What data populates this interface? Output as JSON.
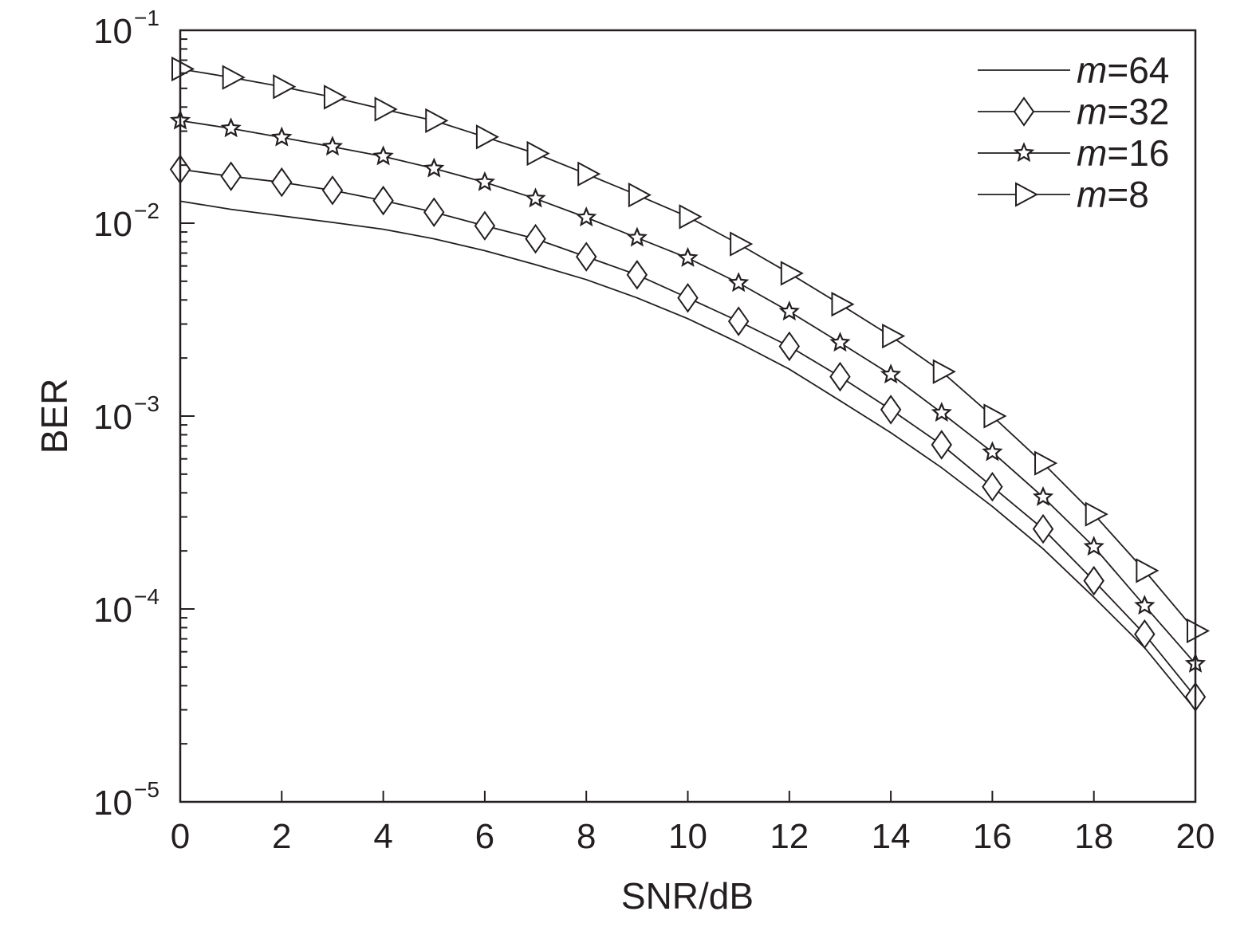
{
  "chart_data": {
    "type": "line",
    "xlabel": "SNR/dB",
    "ylabel": "BER",
    "xlim": [
      0,
      20
    ],
    "ylim": [
      1e-05,
      0.1
    ],
    "yscale": "log",
    "grid": false,
    "legend_position": "top-right",
    "x_ticks": [
      "0",
      "2",
      "4",
      "6",
      "8",
      "10",
      "12",
      "14",
      "16",
      "18",
      "20"
    ],
    "y_ticks": [
      {
        "base": "10",
        "exp": "−1",
        "value": 0.1
      },
      {
        "base": "10",
        "exp": "−2",
        "value": 0.01
      },
      {
        "base": "10",
        "exp": "−3",
        "value": 0.001
      },
      {
        "base": "10",
        "exp": "−4",
        "value": 0.0001
      },
      {
        "base": "10",
        "exp": "−5",
        "value": 1e-05
      }
    ],
    "x": [
      0,
      1,
      2,
      3,
      4,
      5,
      6,
      7,
      8,
      9,
      10,
      11,
      12,
      13,
      14,
      15,
      16,
      17,
      18,
      19,
      20
    ],
    "series": [
      {
        "name_var": "m",
        "name_val": "=64",
        "marker": "none",
        "values": [
          0.013,
          0.0118,
          0.0109,
          0.0101,
          0.0093,
          0.0083,
          0.0072,
          0.0061,
          0.0051,
          0.0041,
          0.0032,
          0.0024,
          0.00175,
          0.0012,
          0.00082,
          0.00054,
          0.00034,
          0.000205,
          0.000115,
          6.3e-05,
          3e-05
        ]
      },
      {
        "name_var": "m",
        "name_val": "=32",
        "marker": "diamond",
        "values": [
          0.019,
          0.0175,
          0.0163,
          0.0148,
          0.0131,
          0.0114,
          0.0097,
          0.0083,
          0.0067,
          0.0054,
          0.0041,
          0.0031,
          0.0023,
          0.0016,
          0.00108,
          0.00071,
          0.00043,
          0.00026,
          0.00014,
          7.4e-05,
          3.5e-05
        ]
      },
      {
        "name_var": "m",
        "name_val": "=16",
        "marker": "star",
        "values": [
          0.034,
          0.031,
          0.0278,
          0.0249,
          0.0222,
          0.0192,
          0.0163,
          0.0134,
          0.0107,
          0.0084,
          0.0066,
          0.0049,
          0.00348,
          0.0024,
          0.00164,
          0.00104,
          0.00065,
          0.00038,
          0.00021,
          0.000104,
          5.2e-05
        ]
      },
      {
        "name_var": "m",
        "name_val": "=8",
        "marker": "triangle-right",
        "values": [
          0.063,
          0.057,
          0.051,
          0.045,
          0.039,
          0.034,
          0.028,
          0.023,
          0.018,
          0.014,
          0.0108,
          0.0078,
          0.0055,
          0.0038,
          0.0026,
          0.0017,
          0.001,
          0.00057,
          0.00031,
          0.000158,
          7.7e-05
        ]
      }
    ]
  }
}
